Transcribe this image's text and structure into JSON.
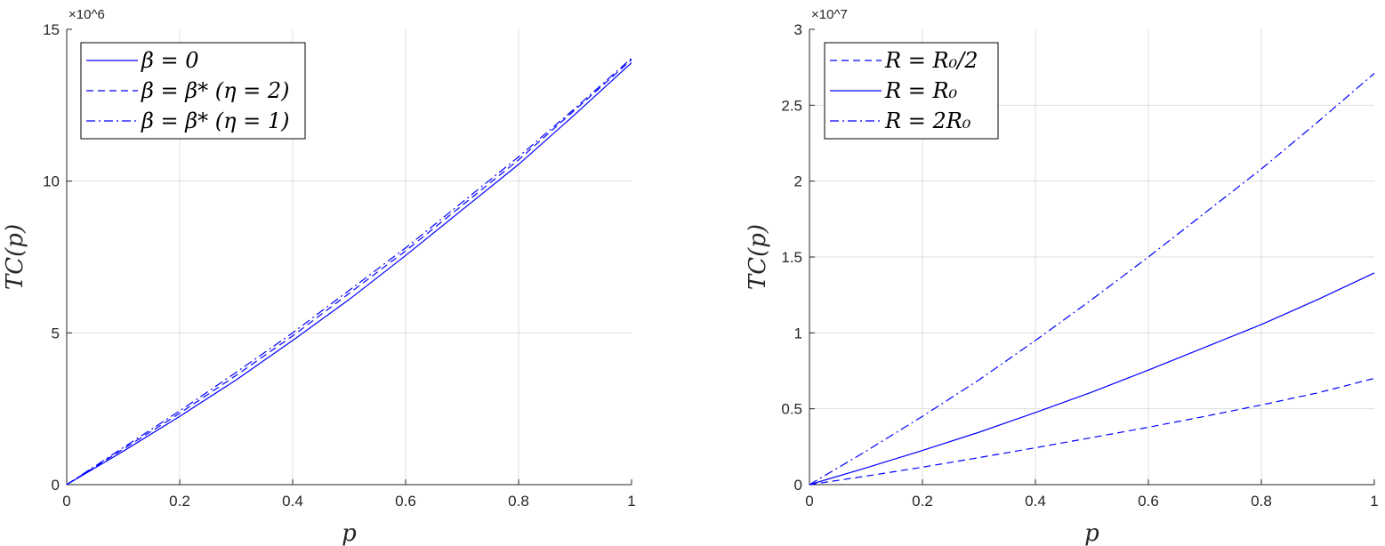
{
  "chart_data": [
    {
      "type": "line",
      "xlabel": "p",
      "ylabel": "TC(p)",
      "exponent_label": "×10^6",
      "xlim": [
        0,
        1
      ],
      "ylim": [
        0,
        15000000
      ],
      "x_ticks": [
        0,
        0.2,
        0.4,
        0.6,
        0.8,
        1
      ],
      "x_tick_labels": [
        "0",
        "0.2",
        "0.4",
        "0.6",
        "0.8",
        "1"
      ],
      "y_ticks": [
        0,
        5000000,
        10000000,
        15000000
      ],
      "y_tick_labels": [
        "0",
        "5",
        "10",
        "15"
      ],
      "grid": true,
      "legend_position": "top-left",
      "color": "#0000ff",
      "x": [
        0,
        0.1,
        0.2,
        0.3,
        0.4,
        0.5,
        0.6,
        0.7,
        0.8,
        0.9,
        1.0
      ],
      "series": [
        {
          "name": "β = 0",
          "style": "solid",
          "values": [
            0,
            1100000,
            2250000,
            3450000,
            4750000,
            6100000,
            7550000,
            9050000,
            10550000,
            12200000,
            13900000
          ]
        },
        {
          "name": "β = β* (η = 2)",
          "style": "dashed",
          "values": [
            0,
            1170000,
            2350000,
            3600000,
            4900000,
            6300000,
            7700000,
            9200000,
            10700000,
            12350000,
            14000000
          ]
        },
        {
          "name": "β = β* (η = 1)",
          "style": "dashdot",
          "values": [
            0,
            1220000,
            2430000,
            3700000,
            5000000,
            6400000,
            7800000,
            9300000,
            10800000,
            12400000,
            14050000
          ]
        }
      ]
    },
    {
      "type": "line",
      "xlabel": "p",
      "ylabel": "TC(p)",
      "exponent_label": "×10^7",
      "xlim": [
        0,
        1
      ],
      "ylim": [
        0,
        30000000
      ],
      "x_ticks": [
        0,
        0.2,
        0.4,
        0.6,
        0.8,
        1
      ],
      "x_tick_labels": [
        "0",
        "0.2",
        "0.4",
        "0.6",
        "0.8",
        "1"
      ],
      "y_ticks": [
        0,
        5000000,
        10000000,
        15000000,
        20000000,
        25000000,
        30000000
      ],
      "y_tick_labels": [
        "0",
        "0.5",
        "1",
        "1.5",
        "2",
        "2.5",
        "3"
      ],
      "grid": true,
      "legend_position": "top-left",
      "color": "#0000ff",
      "x": [
        0,
        0.1,
        0.2,
        0.3,
        0.4,
        0.5,
        0.6,
        0.7,
        0.8,
        0.9,
        1.0
      ],
      "series": [
        {
          "name": "R = R₀/2",
          "style": "dashed",
          "values": [
            0,
            560000,
            1150000,
            1780000,
            2430000,
            3100000,
            3780000,
            4500000,
            5250000,
            6050000,
            7000000
          ]
        },
        {
          "name": "R = R₀",
          "style": "solid",
          "values": [
            0,
            1100000,
            2250000,
            3450000,
            4750000,
            6100000,
            7550000,
            9050000,
            10550000,
            12200000,
            13950000
          ]
        },
        {
          "name": "R = 2R₀",
          "style": "dashdot",
          "values": [
            0,
            2200000,
            4500000,
            6900000,
            9500000,
            12200000,
            15000000,
            17900000,
            20800000,
            23900000,
            27100000
          ]
        }
      ]
    }
  ]
}
